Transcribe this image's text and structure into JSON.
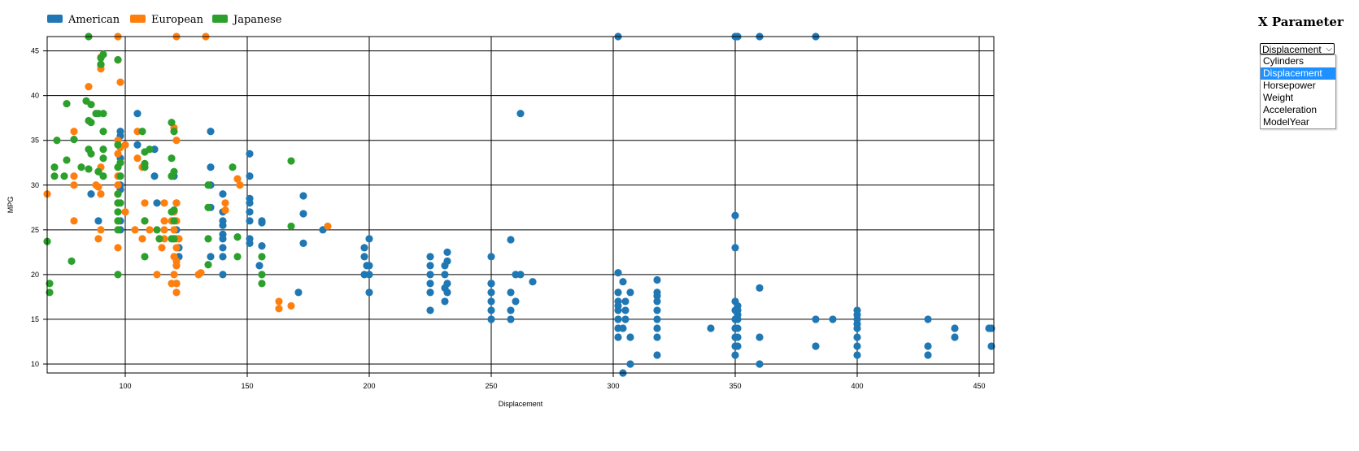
{
  "legend": [
    {
      "label": "American",
      "color": "#1f77b4"
    },
    {
      "label": "European",
      "color": "#ff7f0e"
    },
    {
      "label": "Japanese",
      "color": "#2ca02c"
    }
  ],
  "panel": {
    "title": "X Parameter",
    "selected": "Displacement",
    "options": [
      "Cylinders",
      "Displacement",
      "Horsepower",
      "Weight",
      "Acceleration",
      "ModelYear"
    ]
  },
  "chart_data": {
    "type": "scatter",
    "xlabel": "Displacement",
    "ylabel": "MPG",
    "xlim": [
      68,
      456
    ],
    "ylim": [
      9,
      46.6
    ],
    "grid": true,
    "legend_position": "top-left",
    "x_ticks": [
      100,
      150,
      200,
      250,
      300,
      350,
      400,
      450
    ],
    "y_ticks": [
      10,
      15,
      20,
      25,
      30,
      35,
      40,
      45
    ],
    "series": [
      {
        "name": "American",
        "color": "#1f77b4",
        "points": [
          [
            302,
            46.6
          ],
          [
            350,
            46.6
          ],
          [
            351,
            46.6
          ],
          [
            360,
            46.6
          ],
          [
            383,
            46.6
          ],
          [
            262,
            38
          ],
          [
            105,
            38
          ],
          [
            135,
            36
          ],
          [
            98,
            36
          ],
          [
            98,
            35.5
          ],
          [
            105,
            34.5
          ],
          [
            112,
            34
          ],
          [
            151,
            33.5
          ],
          [
            98,
            33
          ],
          [
            135,
            32
          ],
          [
            151,
            31
          ],
          [
            98,
            30
          ],
          [
            120,
            31
          ],
          [
            112,
            31
          ],
          [
            135,
            30
          ],
          [
            98,
            29.5
          ],
          [
            86,
            29
          ],
          [
            140,
            29
          ],
          [
            173,
            28.8
          ],
          [
            151,
            28.5
          ],
          [
            151,
            28
          ],
          [
            121,
            28
          ],
          [
            113,
            28
          ],
          [
            135,
            27.5
          ],
          [
            140,
            27
          ],
          [
            151,
            27
          ],
          [
            173,
            26.8
          ],
          [
            89,
            26
          ],
          [
            98,
            26
          ],
          [
            151,
            26
          ],
          [
            156,
            26
          ],
          [
            140,
            26
          ],
          [
            140,
            25.5
          ],
          [
            156,
            25.8
          ],
          [
            181,
            25
          ],
          [
            98,
            25
          ],
          [
            121,
            25
          ],
          [
            140,
            24.5
          ],
          [
            151,
            24
          ],
          [
            140,
            24
          ],
          [
            151,
            23.5
          ],
          [
            156,
            23.2
          ],
          [
            173,
            23.5
          ],
          [
            122,
            23
          ],
          [
            140,
            23
          ],
          [
            200,
            24
          ],
          [
            198,
            23
          ],
          [
            135,
            22
          ],
          [
            122,
            22
          ],
          [
            140,
            22
          ],
          [
            198,
            22
          ],
          [
            225,
            22
          ],
          [
            232,
            22.5
          ],
          [
            250,
            22
          ],
          [
            258,
            23.9
          ],
          [
            121,
            21
          ],
          [
            155,
            21
          ],
          [
            199,
            21
          ],
          [
            200,
            21
          ],
          [
            225,
            21
          ],
          [
            231,
            21
          ],
          [
            232,
            21.5
          ],
          [
            250,
            19
          ],
          [
            140,
            20
          ],
          [
            198,
            20
          ],
          [
            200,
            20
          ],
          [
            225,
            20
          ],
          [
            231,
            20
          ],
          [
            260,
            20
          ],
          [
            262,
            20
          ],
          [
            250,
            18
          ],
          [
            225,
            19
          ],
          [
            232,
            19
          ],
          [
            250,
            19
          ],
          [
            258,
            18
          ],
          [
            267,
            19.2
          ],
          [
            231,
            18.5
          ],
          [
            200,
            18
          ],
          [
            225,
            18
          ],
          [
            232,
            18
          ],
          [
            258,
            16
          ],
          [
            250,
            17
          ],
          [
            260,
            17
          ],
          [
            225,
            16
          ],
          [
            250,
            16
          ],
          [
            250,
            15
          ],
          [
            258,
            15
          ],
          [
            231,
            17
          ],
          [
            171,
            18
          ],
          [
            121,
            19
          ],
          [
            302,
            20.2
          ],
          [
            304,
            19.2
          ],
          [
            318,
            19.4
          ],
          [
            302,
            18
          ],
          [
            307,
            18
          ],
          [
            318,
            18
          ],
          [
            318,
            17.6
          ],
          [
            302,
            17
          ],
          [
            305,
            17
          ],
          [
            318,
            17
          ],
          [
            350,
            17
          ],
          [
            351,
            16.5
          ],
          [
            302,
            16
          ],
          [
            305,
            16
          ],
          [
            318,
            16
          ],
          [
            350,
            16
          ],
          [
            351,
            16
          ],
          [
            360,
            18.5
          ],
          [
            302,
            15
          ],
          [
            305,
            15
          ],
          [
            318,
            15
          ],
          [
            350,
            15
          ],
          [
            351,
            15
          ],
          [
            383,
            15
          ],
          [
            390,
            15
          ],
          [
            400,
            15
          ],
          [
            400,
            16
          ],
          [
            429,
            15
          ],
          [
            302,
            14
          ],
          [
            304,
            14
          ],
          [
            318,
            14
          ],
          [
            340,
            14
          ],
          [
            350,
            14
          ],
          [
            351,
            14
          ],
          [
            400,
            14
          ],
          [
            440,
            14
          ],
          [
            455,
            14
          ],
          [
            454,
            14
          ],
          [
            302,
            13
          ],
          [
            307,
            13
          ],
          [
            318,
            13
          ],
          [
            350,
            13
          ],
          [
            351,
            13
          ],
          [
            360,
            13
          ],
          [
            400,
            13
          ],
          [
            440,
            13
          ],
          [
            383,
            12
          ],
          [
            400,
            12
          ],
          [
            429,
            12
          ],
          [
            455,
            12
          ],
          [
            350,
            12
          ],
          [
            351,
            12
          ],
          [
            318,
            11
          ],
          [
            350,
            11
          ],
          [
            400,
            11
          ],
          [
            429,
            11
          ],
          [
            307,
            10
          ],
          [
            360,
            10
          ],
          [
            304,
            9
          ],
          [
            350,
            23
          ],
          [
            350,
            26.6
          ],
          [
            400,
            15.5
          ],
          [
            351,
            15.5
          ],
          [
            302,
            16.5
          ],
          [
            400,
            14.5
          ]
        ]
      },
      {
        "name": "European",
        "color": "#ff7f0e",
        "points": [
          [
            97,
            46.6
          ],
          [
            121,
            46.6
          ],
          [
            133,
            46.6
          ],
          [
            90,
            44.3
          ],
          [
            97,
            44
          ],
          [
            90,
            43.4
          ],
          [
            90,
            43
          ],
          [
            98,
            41.5
          ],
          [
            85,
            41
          ],
          [
            120,
            36.4
          ],
          [
            79,
            36
          ],
          [
            105,
            36
          ],
          [
            121,
            35
          ],
          [
            98,
            34.2
          ],
          [
            100,
            34.5
          ],
          [
            97,
            33.5
          ],
          [
            105,
            33
          ],
          [
            90,
            32
          ],
          [
            89,
            31.5
          ],
          [
            107,
            32
          ],
          [
            97,
            31
          ],
          [
            79,
            31
          ],
          [
            146,
            30.7
          ],
          [
            147,
            30
          ],
          [
            88,
            30
          ],
          [
            89,
            29.8
          ],
          [
            97,
            29
          ],
          [
            90,
            29
          ],
          [
            68,
            29
          ],
          [
            130,
            20
          ],
          [
            141,
            28
          ],
          [
            108,
            28
          ],
          [
            116,
            28
          ],
          [
            97,
            28
          ],
          [
            121,
            28
          ],
          [
            100,
            27
          ],
          [
            120,
            27
          ],
          [
            141,
            27.2
          ],
          [
            119,
            26
          ],
          [
            79,
            26
          ],
          [
            108,
            26
          ],
          [
            97,
            26
          ],
          [
            116,
            26
          ],
          [
            121,
            26
          ],
          [
            183,
            25.4
          ],
          [
            120,
            25
          ],
          [
            90,
            25
          ],
          [
            104,
            25
          ],
          [
            110,
            25
          ],
          [
            116,
            25
          ],
          [
            121,
            24
          ],
          [
            89,
            24
          ],
          [
            107,
            24
          ],
          [
            114,
            24
          ],
          [
            116,
            24
          ],
          [
            122,
            24
          ],
          [
            97,
            23
          ],
          [
            115,
            23
          ],
          [
            121,
            23
          ],
          [
            120,
            22
          ],
          [
            121,
            21.5
          ],
          [
            121,
            21
          ],
          [
            120,
            20
          ],
          [
            113,
            20
          ],
          [
            131,
            20.2
          ],
          [
            97,
            30
          ],
          [
            121,
            19
          ],
          [
            119,
            19
          ],
          [
            163,
            17
          ],
          [
            168,
            16.5
          ],
          [
            163,
            16.2
          ],
          [
            121,
            18
          ],
          [
            79,
            30
          ],
          [
            97,
            35
          ]
        ]
      },
      {
        "name": "Japanese",
        "color": "#2ca02c",
        "points": [
          [
            85,
            46.6
          ],
          [
            91,
            44.6
          ],
          [
            90,
            44.2
          ],
          [
            97,
            44
          ],
          [
            90,
            43.5
          ],
          [
            84,
            39.4
          ],
          [
            76,
            39.1
          ],
          [
            86,
            39
          ],
          [
            88,
            38
          ],
          [
            89,
            38
          ],
          [
            91,
            38
          ],
          [
            119,
            37
          ],
          [
            86,
            37
          ],
          [
            85,
            37.2
          ],
          [
            120,
            36
          ],
          [
            91,
            36
          ],
          [
            107,
            36
          ],
          [
            72,
            35
          ],
          [
            79,
            35.1
          ],
          [
            97,
            34.5
          ],
          [
            85,
            34
          ],
          [
            86,
            33.5
          ],
          [
            108,
            33.7
          ],
          [
            110,
            34
          ],
          [
            91,
            34
          ],
          [
            98,
            32.5
          ],
          [
            108,
            32.4
          ],
          [
            119,
            33
          ],
          [
            76,
            32.8
          ],
          [
            91,
            33
          ],
          [
            97,
            32
          ],
          [
            144,
            32
          ],
          [
            82,
            32
          ],
          [
            168,
            32.7
          ],
          [
            85,
            31.8
          ],
          [
            108,
            32
          ],
          [
            120,
            31.5
          ],
          [
            89,
            31.5
          ],
          [
            71,
            32
          ],
          [
            119,
            31
          ],
          [
            91,
            31
          ],
          [
            98,
            31
          ],
          [
            134,
            30
          ],
          [
            71,
            31
          ],
          [
            75,
            31
          ],
          [
            97,
            29
          ],
          [
            97,
            28
          ],
          [
            120,
            27.2
          ],
          [
            98,
            28
          ],
          [
            119,
            27
          ],
          [
            134,
            27.5
          ],
          [
            97,
            27
          ],
          [
            97,
            26
          ],
          [
            120,
            26
          ],
          [
            108,
            26
          ],
          [
            168,
            25.4
          ],
          [
            97,
            25
          ],
          [
            113,
            25
          ],
          [
            156,
            22
          ],
          [
            146,
            24.2
          ],
          [
            114,
            24
          ],
          [
            119,
            24
          ],
          [
            120,
            24
          ],
          [
            134,
            24
          ],
          [
            68,
            23.7
          ],
          [
            108,
            22
          ],
          [
            146,
            22
          ],
          [
            134,
            21.1
          ],
          [
            156,
            20
          ],
          [
            156,
            19
          ],
          [
            97,
            20
          ],
          [
            78,
            21.5
          ],
          [
            69,
            19
          ],
          [
            69,
            18
          ],
          [
            119,
            31
          ]
        ]
      }
    ]
  }
}
